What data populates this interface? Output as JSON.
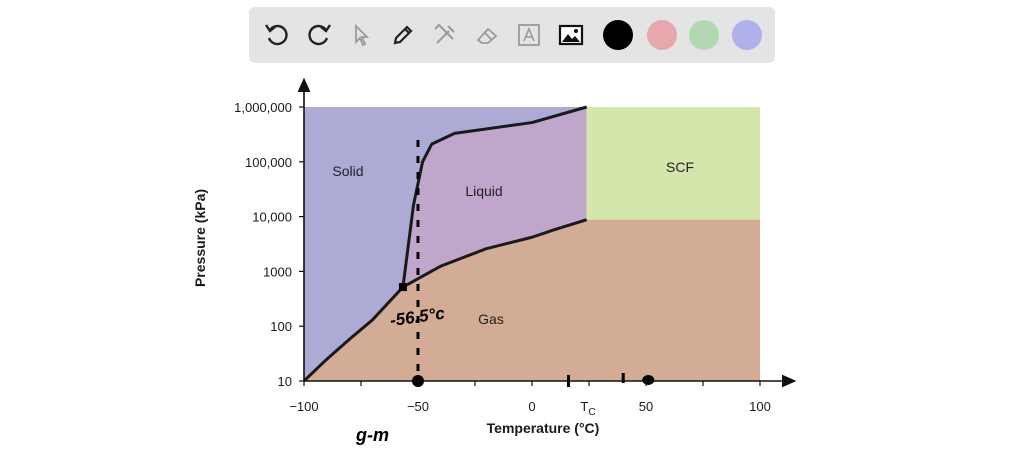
{
  "toolbar": {
    "tools": [
      {
        "name": "undo-icon",
        "state": "enabled"
      },
      {
        "name": "redo-icon",
        "state": "enabled"
      },
      {
        "name": "select-pointer-icon",
        "state": "disabled"
      },
      {
        "name": "pen-icon",
        "state": "enabled"
      },
      {
        "name": "tools-icon",
        "state": "disabled"
      },
      {
        "name": "eraser-icon",
        "state": "disabled"
      },
      {
        "name": "text-box-icon",
        "state": "disabled"
      },
      {
        "name": "image-icon",
        "state": "enabled"
      }
    ],
    "colors": [
      "#000000",
      "#e8a7ad",
      "#b3d9b0",
      "#b0b0ea"
    ]
  },
  "chart_data": {
    "type": "area",
    "xlabel": "Temperature (°C)",
    "ylabel": "Pressure (kPa)",
    "xlim": [
      -100,
      100
    ],
    "ylim": [
      10,
      1000000
    ],
    "yscale": "log",
    "x_ticks": [
      "−100",
      "−50",
      "0",
      "50",
      "100"
    ],
    "tc_label": "T",
    "tc_sub": "C",
    "y_ticks": [
      "10",
      "100",
      "1000",
      "10,000",
      "100,000",
      "1,000,000"
    ],
    "regions": [
      {
        "name": "Solid",
        "color": "#ababd6"
      },
      {
        "name": "Liquid",
        "color": "#c1a6cc"
      },
      {
        "name": "SCF",
        "color": "#d5e6ac"
      },
      {
        "name": "Gas",
        "color": "#d3ac95"
      }
    ],
    "critical_point": {
      "x": 24,
      "y": 8800
    },
    "triple_point": {
      "x": -56.6,
      "y": 518
    },
    "vaporization_curve": [
      [
        -100,
        10
      ],
      [
        -90,
        25
      ],
      [
        -80,
        58
      ],
      [
        -70,
        130
      ],
      [
        -56.6,
        518
      ],
      [
        -40,
        1250
      ],
      [
        -20,
        2600
      ],
      [
        0,
        4200
      ],
      [
        10,
        5800
      ],
      [
        24,
        8800
      ]
    ],
    "sublimation_curve": [
      [
        -100,
        10
      ],
      [
        -90,
        25
      ],
      [
        -80,
        58
      ],
      [
        -70,
        130
      ],
      [
        -56.6,
        518
      ]
    ],
    "melting_curve": [
      [
        -56.6,
        518
      ],
      [
        -52,
        16000
      ],
      [
        -48,
        100000
      ],
      [
        -44,
        210000
      ],
      [
        -34,
        330000
      ],
      [
        0,
        520000
      ],
      [
        24,
        1000000
      ]
    ],
    "annotations": {
      "handwritten_temp": "-56.5°c",
      "handwritten_note": "g-m"
    }
  }
}
